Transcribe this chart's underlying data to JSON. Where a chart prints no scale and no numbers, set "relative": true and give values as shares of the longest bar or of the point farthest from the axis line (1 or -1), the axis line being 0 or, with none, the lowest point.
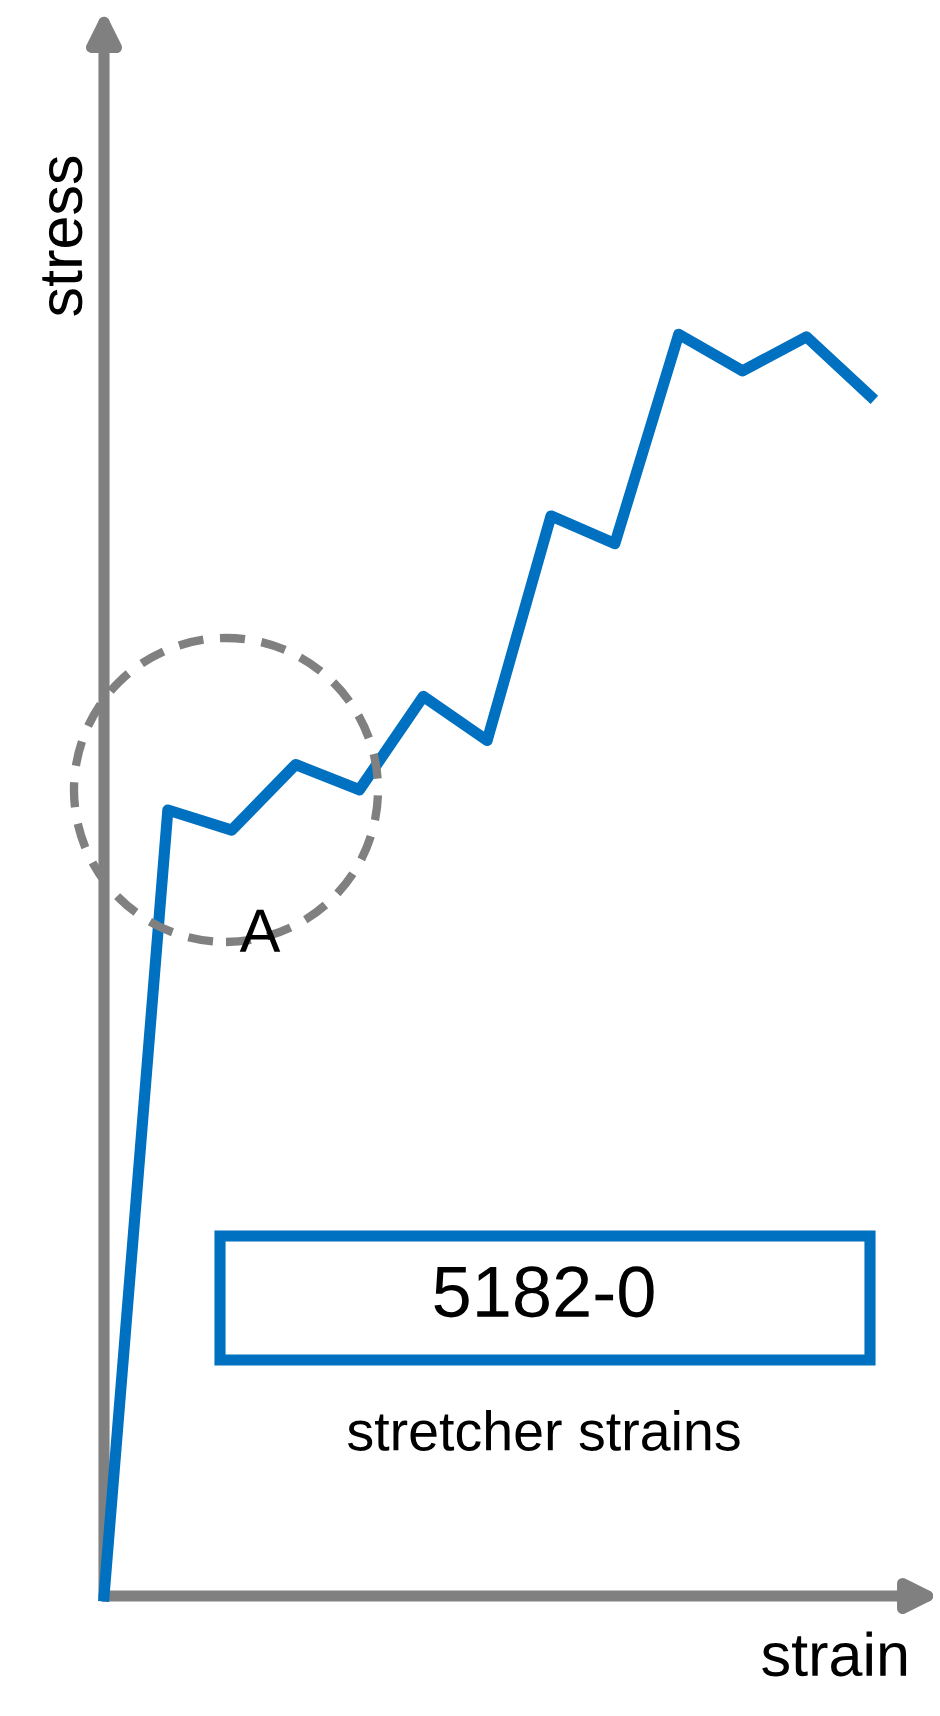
{
  "chart_data": {
    "type": "line",
    "relative": true,
    "xlabel": "strain",
    "ylabel": "stress",
    "categories": [
      null,
      null,
      null,
      null,
      null,
      null,
      null,
      null,
      null,
      null,
      null,
      null,
      null
    ],
    "series": [
      {
        "color": "#0070c0",
        "values": [
          0,
          0.623,
          0.607,
          0.659,
          0.639,
          0.713,
          0.678,
          0.856,
          0.834,
          1.0,
          0.971,
          0.998,
          0.951
        ]
      }
    ],
    "annotations": [
      "A",
      "5182-0",
      "stretcher strains"
    ],
    "marker": "none",
    "line_style": "solid"
  }
}
